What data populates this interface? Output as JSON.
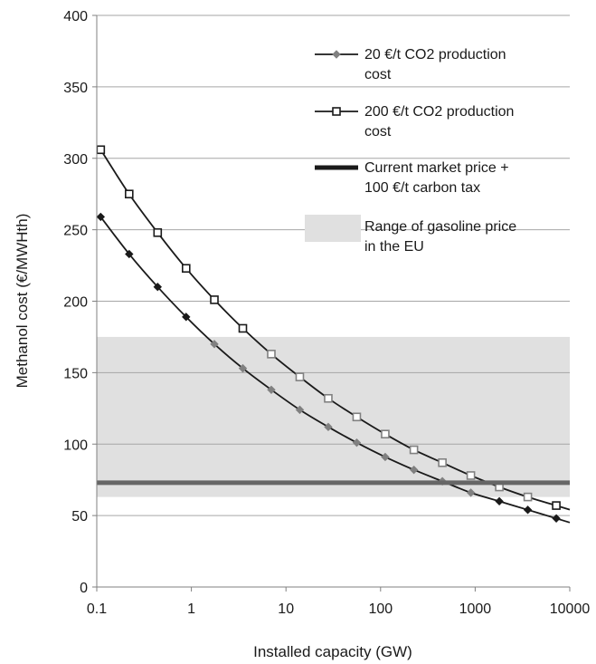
{
  "chart_data": {
    "type": "line",
    "xscale": "log",
    "xlabel": "Installed capacity (GW)",
    "ylabel": "Methanol cost (€/MWHth)",
    "xlim": [
      0.1,
      10000
    ],
    "ylim": [
      0,
      400
    ],
    "x_ticks": [
      0.1,
      1,
      10,
      100,
      1000,
      10000
    ],
    "x_tick_labels": [
      "0.1",
      "1",
      "10",
      "100",
      "1000",
      "10000"
    ],
    "y_ticks": [
      0,
      50,
      100,
      150,
      200,
      250,
      300,
      350,
      400
    ],
    "y_tick_labels": [
      "0",
      "50",
      "100",
      "150",
      "200",
      "250",
      "300",
      "350",
      "400"
    ],
    "grid": "horizontal",
    "legend_position": "top-right",
    "band": {
      "name": "Range of gasoline price in the EU",
      "y_range": [
        63,
        175
      ],
      "color": "#e0e0e0"
    },
    "series": [
      {
        "name": "20 €/t CO2 production cost",
        "marker": "diamond",
        "color": "#1a1a1a",
        "x": [
          0.11,
          0.22,
          0.44,
          0.88,
          1.75,
          3.5,
          7,
          14,
          28,
          56,
          112,
          225,
          450,
          900,
          1800,
          3600,
          7200
        ],
        "values": [
          259,
          233,
          210,
          189,
          170,
          153,
          138,
          124,
          112,
          101,
          91,
          82,
          74,
          66,
          60,
          54,
          48
        ]
      },
      {
        "name": "200 €/t CO2 production cost",
        "marker": "square",
        "color": "#1a1a1a",
        "x": [
          0.11,
          0.22,
          0.44,
          0.88,
          1.75,
          3.5,
          7,
          14,
          28,
          56,
          112,
          225,
          450,
          900,
          1800,
          3600,
          7200
        ],
        "values": [
          306,
          275,
          248,
          223,
          201,
          181,
          163,
          147,
          132,
          119,
          107,
          96,
          87,
          78,
          70,
          63,
          57
        ]
      },
      {
        "name": "Current market price + 100 €/t carbon tax",
        "style": "thick-line",
        "color": "#666666",
        "x": [
          0.1,
          10000
        ],
        "values": [
          73,
          73
        ]
      }
    ]
  }
}
